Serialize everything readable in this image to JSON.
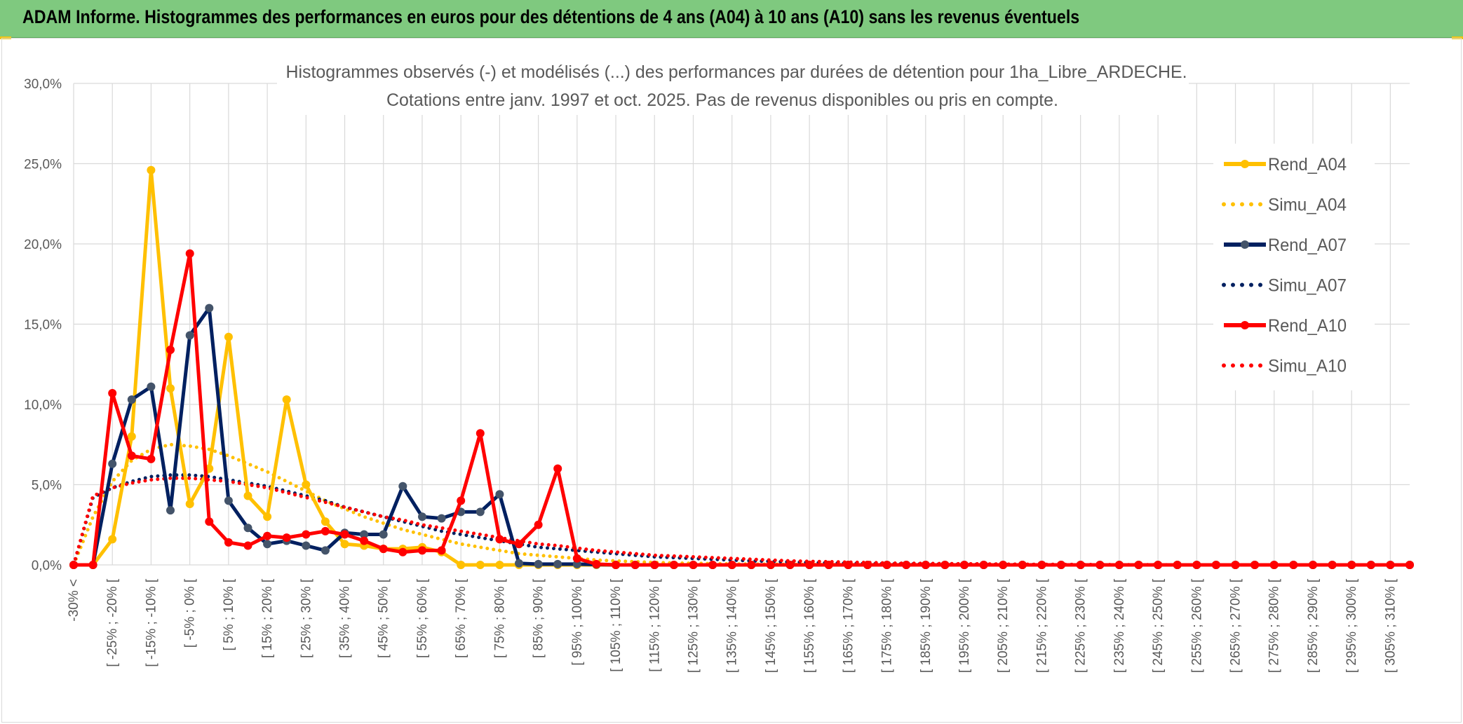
{
  "header": {
    "title": "ADAM Informe. Histogrammes des performances en euros pour des détentions de 4 ans (A04) à 10 ans (A10) sans les revenus éventuels"
  },
  "colors": {
    "banner": "#7fc97f",
    "A04": "#ffc000",
    "A07": "#002060",
    "A10": "#ff0000"
  },
  "chart_data": {
    "type": "line",
    "title": "Histogrammes observés (-) et modélisés (...) des performances par durées de détention pour 1ha_Libre_ARDECHE.",
    "subtitle": "Cotations entre janv. 1997 et oct. 2025. Pas de revenus disponibles ou pris en compte.",
    "xlabel": "",
    "ylabel": "",
    "ylim": [
      0,
      30
    ],
    "y_ticks": [
      "0,0%",
      "5,0%",
      "10,0%",
      "15,0%",
      "20,0%",
      "25,0%",
      "30,0%"
    ],
    "legend_position": "right",
    "x_labels": [
      "-30% <",
      "[ -25% ; -20% [",
      "[ -15% ; -10% [",
      "[ -5% ; 0% [",
      "[ 5% ; 10% [",
      "[ 15% ; 20% [",
      "[ 25% ; 30% [",
      "[ 35% ; 40% [",
      "[ 45% ; 50% [",
      "[ 55% ; 60% [",
      "[ 65% ; 70% [",
      "[ 75% ; 80% [",
      "[ 85% ; 90% [",
      "[ 95% ; 100% [",
      "[ 105% ; 110% [",
      "[ 115% ; 120% [",
      "[ 125% ; 130% [",
      "[ 135% ; 140% [",
      "[ 145% ; 150% [",
      "[ 155% ; 160% [",
      "[ 165% ; 170% [",
      "[ 175% ; 180% [",
      "[ 185% ; 190% [",
      "[ 195% ; 200% [",
      "[ 205% ; 210% [",
      "[ 215% ; 220% [",
      "[ 225% ; 230% [",
      "[ 235% ; 240% [",
      "[ 245% ; 250% [",
      "[ 255% ; 260% [",
      "[ 265% ; 270% [",
      "[ 275% ; 280% [",
      "[ 285% ; 290% [",
      "[ 295% ; 300% [",
      "[ 305% ; 310% ["
    ],
    "series": [
      {
        "name": "Rend_A04",
        "style": "solid",
        "color": "#ffc000",
        "values": [
          0,
          0,
          1.6,
          8.0,
          24.6,
          11.0,
          3.8,
          6.0,
          14.2,
          4.3,
          3.0,
          10.3,
          5.0,
          2.7,
          1.3,
          1.2,
          1.0,
          1.0,
          1.1,
          0.8,
          0,
          0,
          0,
          0,
          0,
          0,
          0,
          0,
          0,
          0,
          0,
          0,
          0,
          0,
          0,
          0,
          0,
          0,
          0,
          0,
          0,
          0,
          0,
          0,
          0,
          0,
          0,
          0,
          0,
          0,
          0,
          0,
          0,
          0,
          0,
          0,
          0,
          0,
          0,
          0,
          0,
          0,
          0,
          0,
          0,
          0,
          0,
          0,
          0,
          0
        ]
      },
      {
        "name": "Simu_A04",
        "style": "dotted",
        "color": "#ffc000",
        "values": [
          0,
          3.0,
          5.2,
          6.5,
          7.2,
          7.5,
          7.4,
          7.2,
          6.8,
          6.3,
          5.8,
          5.2,
          4.6,
          4.0,
          3.5,
          3.0,
          2.6,
          2.2,
          1.9,
          1.6,
          1.3,
          1.1,
          0.9,
          0.7,
          0.6,
          0.5,
          0.4,
          0.3,
          0.25,
          0.2,
          0.15,
          0.12,
          0.1,
          0.08,
          0.06,
          0.05,
          0.04,
          0.03,
          0.02,
          0.02,
          0.01,
          0.01,
          0,
          0,
          0,
          0,
          0,
          0,
          0,
          0,
          0,
          0,
          0,
          0,
          0,
          0,
          0,
          0,
          0,
          0,
          0,
          0,
          0,
          0,
          0,
          0,
          0,
          0,
          0,
          0
        ]
      },
      {
        "name": "Rend_A07",
        "style": "solid",
        "color": "#002060",
        "values": [
          0,
          0,
          6.3,
          10.3,
          11.1,
          3.4,
          14.3,
          16.0,
          4.0,
          2.3,
          1.3,
          1.5,
          1.2,
          0.9,
          2.0,
          1.9,
          1.9,
          4.9,
          3.0,
          2.9,
          3.3,
          3.3,
          4.4,
          0.1,
          0.05,
          0.05,
          0.05,
          0.02,
          0,
          0,
          0,
          0,
          0,
          0,
          0,
          0,
          0,
          0,
          0,
          0,
          0,
          0,
          0,
          0,
          0,
          0,
          0,
          0,
          0,
          0,
          0,
          0,
          0,
          0,
          0,
          0,
          0,
          0,
          0,
          0,
          0,
          0,
          0,
          0,
          0,
          0,
          0,
          0,
          0,
          0
        ]
      },
      {
        "name": "Simu_A07",
        "style": "dotted",
        "color": "#002060",
        "values": [
          0,
          4.2,
          4.8,
          5.2,
          5.5,
          5.6,
          5.6,
          5.5,
          5.3,
          5.1,
          4.9,
          4.6,
          4.3,
          4.0,
          3.6,
          3.3,
          3.0,
          2.7,
          2.4,
          2.1,
          1.9,
          1.7,
          1.5,
          1.3,
          1.1,
          1.0,
          0.9,
          0.8,
          0.7,
          0.6,
          0.5,
          0.45,
          0.4,
          0.35,
          0.3,
          0.25,
          0.22,
          0.18,
          0.15,
          0.12,
          0.1,
          0.08,
          0.07,
          0.06,
          0.05,
          0.04,
          0.03,
          0.03,
          0.02,
          0.02,
          0.01,
          0.01,
          0.01,
          0,
          0,
          0,
          0,
          0,
          0,
          0,
          0,
          0,
          0,
          0,
          0,
          0,
          0,
          0,
          0,
          0
        ]
      },
      {
        "name": "Rend_A10",
        "style": "solid",
        "color": "#ff0000",
        "values": [
          0,
          0,
          10.7,
          6.8,
          6.6,
          13.4,
          19.4,
          2.7,
          1.4,
          1.2,
          1.8,
          1.7,
          1.9,
          2.1,
          1.9,
          1.5,
          1.0,
          0.8,
          0.9,
          0.9,
          4.0,
          8.2,
          1.6,
          1.3,
          2.5,
          6.0,
          0.4,
          0.05,
          0,
          0,
          0,
          0,
          0,
          0,
          0,
          0,
          0,
          0,
          0,
          0,
          0,
          0,
          0,
          0,
          0,
          0,
          0,
          0,
          0,
          0,
          0,
          0,
          0,
          0,
          0,
          0,
          0,
          0,
          0,
          0,
          0,
          0,
          0,
          0,
          0,
          0,
          0,
          0,
          0,
          0
        ]
      },
      {
        "name": "Simu_A10",
        "style": "dotted",
        "color": "#ff0000",
        "values": [
          0,
          4.3,
          4.8,
          5.1,
          5.3,
          5.4,
          5.4,
          5.3,
          5.2,
          5.0,
          4.8,
          4.5,
          4.2,
          3.9,
          3.6,
          3.3,
          3.0,
          2.8,
          2.5,
          2.3,
          2.1,
          1.9,
          1.7,
          1.5,
          1.3,
          1.2,
          1.05,
          0.9,
          0.8,
          0.7,
          0.6,
          0.55,
          0.5,
          0.45,
          0.4,
          0.35,
          0.3,
          0.25,
          0.22,
          0.2,
          0.17,
          0.15,
          0.12,
          0.1,
          0.09,
          0.08,
          0.07,
          0.06,
          0.05,
          0.04,
          0.03,
          0.03,
          0.02,
          0.02,
          0.01,
          0.01,
          0.01,
          0,
          0,
          0,
          0,
          0,
          0,
          0,
          0,
          0,
          0,
          0,
          0,
          0
        ]
      }
    ]
  }
}
